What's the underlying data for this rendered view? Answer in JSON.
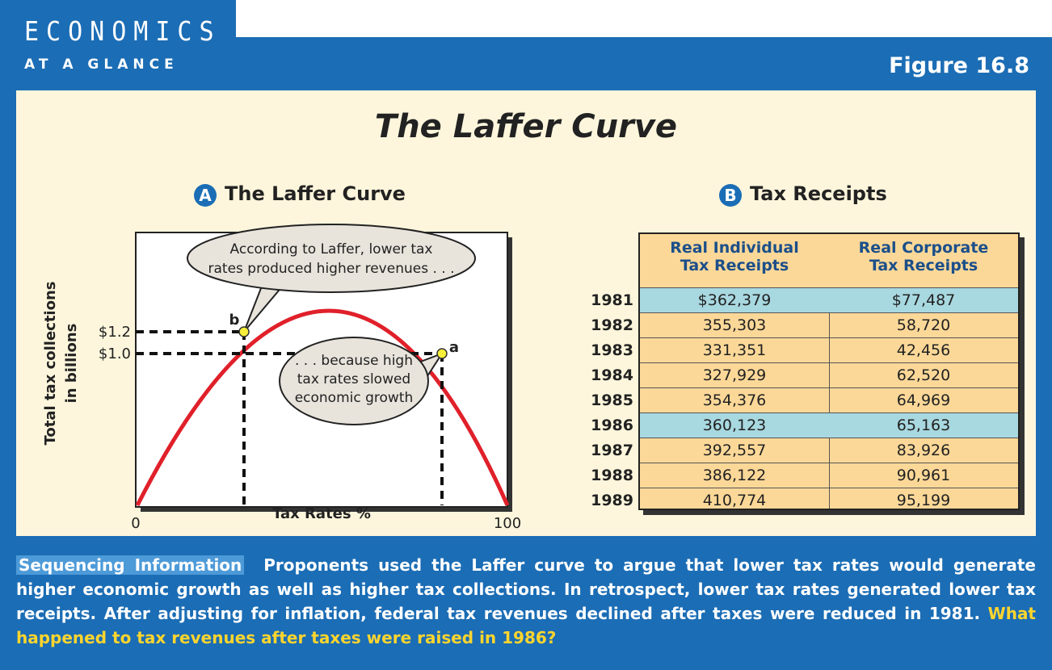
{
  "header": {
    "tab_line1": "ECONOMICS",
    "tab_line2": "AT A GLANCE",
    "figure": "Figure 16.8"
  },
  "title": "The Laffer Curve",
  "panel_a": {
    "badge": "A",
    "title": "The Laffer Curve",
    "y_label_line1": "Total tax collections",
    "y_label_line2": "in billions",
    "x_label": "Tax Rates %",
    "y_ticks": [
      "$1.2",
      "$1.0"
    ],
    "x_ticks": [
      "0",
      "100"
    ],
    "point_b": "b",
    "point_a": "a",
    "callout_b": [
      "According to Laffer, lower tax",
      "rates produced higher revenues . . ."
    ],
    "callout_a": [
      ". . . because high",
      "tax rates slowed",
      "economic growth"
    ]
  },
  "panel_b": {
    "badge": "B",
    "title": "Tax Receipts",
    "columns": [
      [
        "Real Individual",
        "Tax Receipts"
      ],
      [
        "Real Corporate",
        "Tax Receipts"
      ]
    ],
    "rows": [
      [
        "1981",
        "$362,379",
        "$77,487"
      ],
      [
        "1982",
        "355,303",
        "58,720"
      ],
      [
        "1983",
        "331,351",
        "42,456"
      ],
      [
        "1984",
        "327,929",
        "62,520"
      ],
      [
        "1985",
        "354,376",
        "64,969"
      ],
      [
        "1986",
        "360,123",
        "65,163"
      ],
      [
        "1987",
        "392,557",
        "83,926"
      ],
      [
        "1988",
        "386,122",
        "90,961"
      ],
      [
        "1989",
        "410,774",
        "95,199"
      ]
    ]
  },
  "caption": {
    "label": "Sequencing Information",
    "text": "Proponents used the Laffer curve to argue that lower tax rates would generate higher economic growth as well as higher tax collections. In retrospect, lower tax rates generated lower tax receipts. After adjusting for inflation, federal tax revenues declined after taxes were reduced in 1981.",
    "question": "What happened to tax revenues after taxes were raised in 1986?"
  }
}
